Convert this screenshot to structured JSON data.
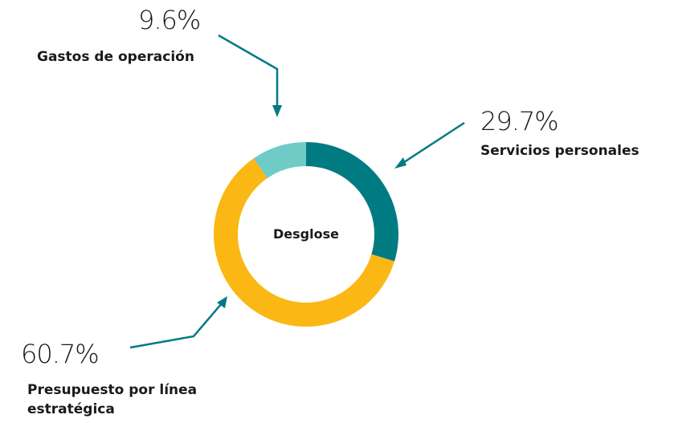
{
  "chart_data": {
    "type": "donut",
    "center_label": "Desglose",
    "categories": [
      "Servicios personales",
      "Presupuesto por línea estratégica",
      "Gastos de operación"
    ],
    "values": [
      29.7,
      60.7,
      9.6
    ],
    "value_labels": [
      "29.7%",
      "60.7%",
      "9.6%"
    ],
    "colors": [
      "#007b82",
      "#fbb714",
      "#6ecbc6"
    ]
  }
}
